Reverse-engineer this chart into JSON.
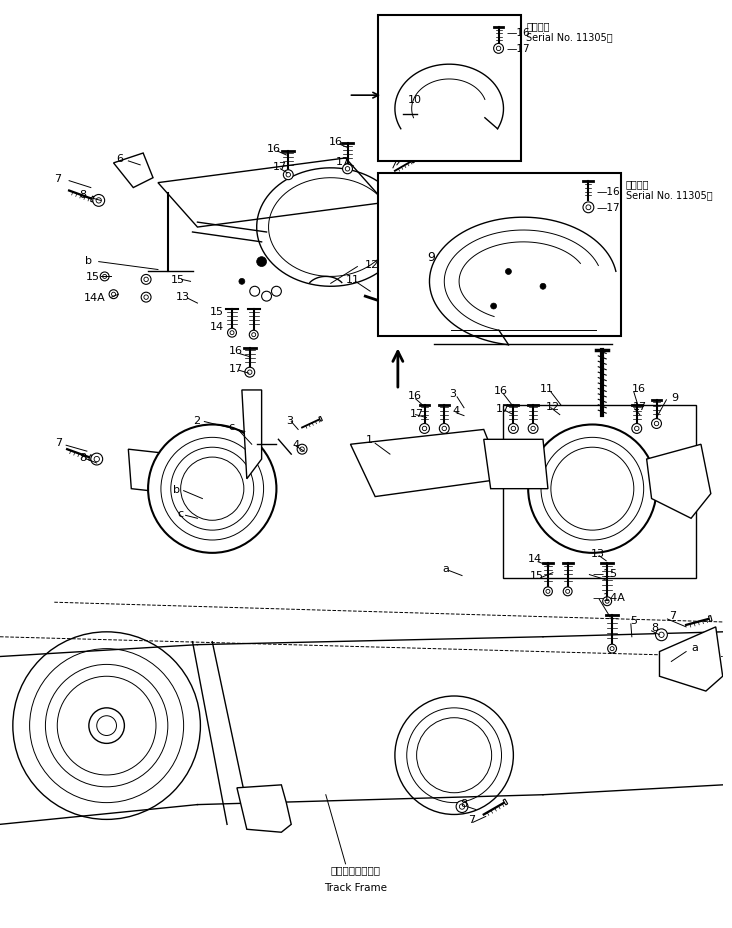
{
  "background_color": "#ffffff",
  "line_color": "#000000",
  "figsize": [
    7.32,
    9.29
  ],
  "dpi": 100,
  "serial_text1": "適用号機\nSerial No. 11305～",
  "serial_text2": "適用号機\nSerial No. 11305～",
  "track_frame_jp": "トラックフレーム",
  "track_frame_en": "Track Frame"
}
